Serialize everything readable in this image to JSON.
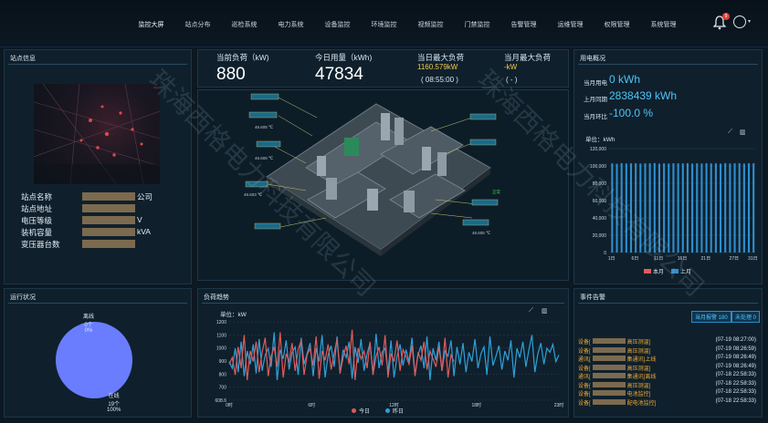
{
  "nav": {
    "items": [
      "监控大屏",
      "站点分布",
      "巡检系统",
      "电力系统",
      "设备监控",
      "环境监控",
      "视频监控",
      "门禁监控",
      "告警管理",
      "运维管理",
      "权限管理",
      "系统管理"
    ],
    "badge": "9"
  },
  "site": {
    "title": "站点信息",
    "rows": [
      {
        "label": "站点名称",
        "value": "公司"
      },
      {
        "label": "站点地址",
        "value": ""
      },
      {
        "label": "电压等级",
        "value": "V"
      },
      {
        "label": "装机容量",
        "value": "kVA"
      },
      {
        "label": "变压器台数",
        "value": ""
      }
    ]
  },
  "kpi": {
    "current_load_label": "当前负荷（kW)",
    "current_load_value": "880",
    "today_usage_label": "今日用量（kWh)",
    "today_usage_value": "47834",
    "today_max_label": "当日最大负荷",
    "today_max_value": "1160.579kW",
    "today_max_time": "( 08:55:00 )",
    "month_max_label": "当月最大负荷",
    "month_max_value": "-kW",
    "month_max_time": "( - )"
  },
  "scene": {
    "label_temp1": "46.605 ℃",
    "label_temp2": "46.603 ℃",
    "label_temp3": "46.606 ℃",
    "label_temp4": "46.605 ℃",
    "label_status": "正常"
  },
  "usage": {
    "title": "用电概况",
    "month_label": "当月用电",
    "month_value": "0 kWh",
    "last_label": "上月同期",
    "last_value": "2838439 kWh",
    "ratio_label": "当月环比",
    "ratio_value": "-100.0 %",
    "unit": "单位：kWh",
    "legend_this": "本月",
    "legend_last": "上月"
  },
  "run_status": {
    "title": "运行状况",
    "offline_label": "离线",
    "offline_count": "0个",
    "offline_pct": "0%",
    "online_label": "在线",
    "online_count": "19个",
    "online_pct": "100%"
  },
  "load_trend": {
    "title": "负荷趋势",
    "unit": "单位：kW",
    "legend_today": "今日",
    "legend_yesterday": "昨日"
  },
  "events": {
    "title": "事件告警",
    "btn_today": "当月报警 180",
    "btn_unhandled": "未处理 0",
    "rows": [
      {
        "text": "设备[",
        "mid": "高压测温]",
        "time": "(07-19 08:27:00)"
      },
      {
        "text": "设备[",
        "mid": "高压测温]",
        "time": "(07-19 08:26:59)"
      },
      {
        "text": "通讯[",
        "mid": "集通讯]上线",
        "time": "(07-19 08:26:49)"
      },
      {
        "text": "设备[",
        "mid": "高压测温]",
        "time": "(07-19 08:26:49)"
      },
      {
        "text": "通讯[",
        "mid": "集通讯]离线",
        "time": "(07-18 22:58:33)"
      },
      {
        "text": "设备[",
        "mid": "高压测温]",
        "time": "(07-18 22:58:33)"
      },
      {
        "text": "设备[",
        "mid": "电池监控]",
        "time": "(07-18 22:58:33)"
      },
      {
        "text": "设备[",
        "mid": "配电池监控]",
        "time": "(07-18 22:58:33)"
      }
    ]
  },
  "chart_data": [
    {
      "type": "bar",
      "title": "",
      "ylabel": "kWh",
      "ylim": [
        0,
        120000
      ],
      "yticks": [
        "0",
        "20,000",
        "40,000",
        "60,000",
        "80,000",
        "100,000",
        "120,000"
      ],
      "xticks": [
        "1日",
        "6日",
        "11日",
        "16日",
        "21日",
        "27日",
        "31日"
      ],
      "series": [
        {
          "name": "本月",
          "color": "#e05a5a",
          "values": [
            0,
            0,
            0,
            0,
            0,
            0,
            0,
            0,
            0,
            0,
            0,
            0,
            0,
            0,
            0,
            0,
            0,
            0,
            0,
            0,
            0,
            0,
            0,
            0,
            0,
            0,
            0,
            0,
            0,
            0,
            0
          ]
        },
        {
          "name": "上月",
          "color": "#2f8fd0",
          "values": [
            103000,
            102500,
            103200,
            102800,
            103000,
            103100,
            102700,
            102900,
            103000,
            103300,
            102600,
            103000,
            102800,
            103100,
            103000,
            102900,
            103200,
            102700,
            103000,
            102800,
            103100,
            102900,
            103000,
            102600,
            103200,
            102800,
            103000,
            103100,
            102700,
            103000,
            103000
          ]
        }
      ],
      "grid": true,
      "legend": "bottom"
    },
    {
      "type": "pie",
      "labels": [
        "在线",
        "离线"
      ],
      "values": [
        19,
        0
      ],
      "colors": [
        "#6a7dff",
        "#e05a5a"
      ]
    },
    {
      "type": "line",
      "title": "",
      "ylabel": "kW",
      "ylim": [
        608.6,
        1200
      ],
      "yticks": [
        "608.6",
        "700",
        "800",
        "900",
        "1000",
        "1100",
        "1200"
      ],
      "xticks": [
        "0时",
        "6时",
        "12时",
        "18时",
        "23时"
      ],
      "series": [
        {
          "name": "今日",
          "color": "#e05a5a",
          "values": [
            880,
            930,
            800,
            1010,
            850,
            1100,
            760,
            980,
            900,
            1050,
            820,
            970,
            1080,
            790,
            940,
            1010,
            860,
            1120,
            780,
            960,
            900,
            1040,
            830,
            990,
            1060,
            800,
            950,
            1000,
            870,
            1090,
            770,
            980,
            910,
            1030,
            840,
            960,
            1070,
            810,
            930,
            1020,
            880,
            1140,
            760,
            1000,
            920,
            980,
            850,
            1050,
            800,
            940,
            1010,
            870,
            1100,
            780,
            960,
            900,
            1060,
            830,
            990,
            940,
            880,
            1020,
            790,
            970,
            910,
            1050,
            840,
            980,
            920,
            860,
            1010,
            830,
            1080,
            780,
            950,
            900
          ]
        },
        {
          "name": "昨日",
          "color": "#2fa0d8",
          "values": [
            900,
            850,
            1000,
            820,
            1050,
            790,
            980,
            880,
            1030,
            810,
            1070,
            830,
            950,
            1000,
            860,
            1120,
            760,
            990,
            920,
            1060,
            840,
            970,
            1010,
            800,
            1080,
            880,
            960,
            1040,
            790,
            1000,
            900,
            1100,
            780,
            950,
            1020,
            860,
            1090,
            810,
            990,
            930,
            1050,
            770,
            1010,
            890,
            1070,
            830,
            960,
            1040,
            800,
            1110,
            850,
            970,
            1000,
            820,
            1060,
            780,
            940,
            1030,
            870,
            990,
            900,
            1080,
            800,
            950,
            1020,
            850,
            1090,
            760,
            1000,
            910,
            1050,
            830,
            980,
            940,
            1060,
            790,
            1010,
            880,
            1040,
            820,
            970,
            900,
            1070,
            850,
            960,
            1010,
            800,
            1090,
            870,
            940,
            1020,
            840,
            980,
            910,
            1060,
            780,
            1000,
            930,
            1050,
            860,
            990,
            1100,
            820,
            960,
            1040,
            880,
            1000,
            970,
            1030,
            900,
            950
          ]
        }
      ],
      "grid": true,
      "legend": "bottom"
    }
  ]
}
